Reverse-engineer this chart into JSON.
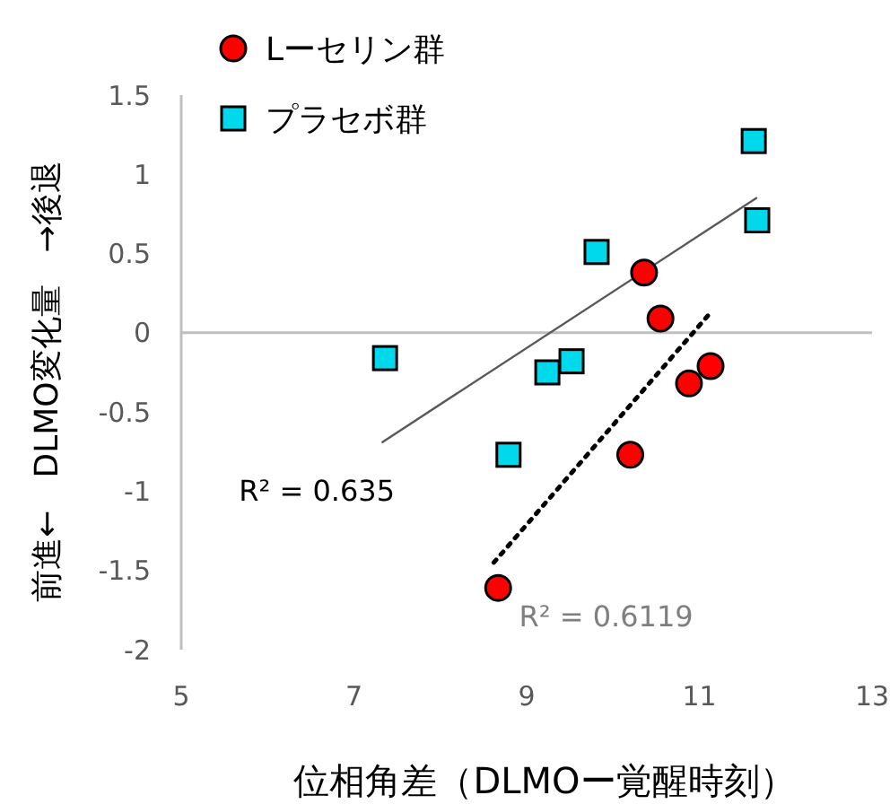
{
  "chart_data": {
    "type": "scatter",
    "xlabel": "位相角差（DLMOー覚醒時刻）",
    "ylabel": "前進←　DLMO変化量　→後退",
    "xlim": [
      5,
      13
    ],
    "xticks": [
      5,
      7,
      9,
      11,
      13
    ],
    "ylim": [
      -2,
      1.5
    ],
    "yticks": [
      -2,
      -1.5,
      -1,
      -0.5,
      0,
      0.5,
      1,
      1.5
    ],
    "legend": "top left",
    "series": [
      {
        "name": "Lーセリン群",
        "marker": "circle",
        "color": "#ff0000",
        "x": [
          10.36,
          10.55,
          11.13,
          10.88,
          10.2,
          8.67
        ],
        "values": [
          0.38,
          0.09,
          -0.21,
          -0.32,
          -0.77,
          -1.61
        ]
      },
      {
        "name": "プラセボ群",
        "marker": "square",
        "color": "#00d8ec",
        "x": [
          11.63,
          11.67,
          9.81,
          7.36,
          9.24,
          9.52,
          8.79
        ],
        "values": [
          1.21,
          0.71,
          0.51,
          -0.16,
          -0.25,
          -0.18,
          -0.77
        ]
      },
      {
        "type": "line",
        "line_style": "solid",
        "color": "#595959",
        "x": [
          7.33,
          11.66
        ],
        "values": [
          -0.69,
          0.85
        ]
      },
      {
        "type": "line",
        "line_style": "dotted",
        "color": "#000000",
        "x": [
          8.62,
          11.15
        ],
        "values": [
          -1.45,
          0.14
        ]
      }
    ],
    "annotations": [
      "R² = 0.635",
      "R² = 0.6119"
    ]
  }
}
